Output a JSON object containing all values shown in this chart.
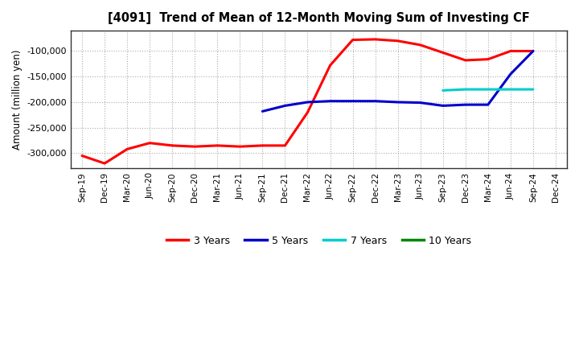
{
  "title": "[4091]  Trend of Mean of 12-Month Moving Sum of Investing CF",
  "ylabel": "Amount (million yen)",
  "plot_bg_color": "#ffffff",
  "fig_bg_color": "#ffffff",
  "grid_color": "#999999",
  "x_labels": [
    "Sep-19",
    "Dec-19",
    "Mar-20",
    "Jun-20",
    "Sep-20",
    "Dec-20",
    "Mar-21",
    "Jun-21",
    "Sep-21",
    "Dec-21",
    "Mar-22",
    "Jun-22",
    "Sep-22",
    "Dec-22",
    "Mar-23",
    "Jun-23",
    "Sep-23",
    "Dec-23",
    "Mar-24",
    "Jun-24",
    "Sep-24",
    "Dec-24"
  ],
  "ylim": [
    -330000,
    -60000
  ],
  "yticks": [
    -300000,
    -250000,
    -200000,
    -150000,
    -100000
  ],
  "series": {
    "3 Years": {
      "color": "#ff0000",
      "x_indices": [
        0,
        1,
        2,
        3,
        4,
        5,
        6,
        7,
        8,
        9,
        10,
        11,
        12,
        13,
        14,
        15,
        16,
        17,
        18,
        19,
        20
      ],
      "y": [
        -305000,
        -320000,
        -292000,
        -280000,
        -285000,
        -287000,
        -285000,
        -287000,
        -285000,
        -285000,
        -220000,
        -128000,
        -78000,
        -77000,
        -80000,
        -88000,
        -103000,
        -118000,
        -116000,
        -100000,
        -100000
      ]
    },
    "5 Years": {
      "color": "#0000cc",
      "x_indices": [
        8,
        9,
        10,
        11,
        12,
        13,
        14,
        15,
        16,
        17,
        18,
        19,
        20
      ],
      "y": [
        -218000,
        -207000,
        -200000,
        -198000,
        -198000,
        -198000,
        -200000,
        -201000,
        -207000,
        -205000,
        -205000,
        -145000,
        -100000
      ]
    },
    "7 Years": {
      "color": "#00cccc",
      "x_indices": [
        16,
        17,
        18,
        19,
        20
      ],
      "y": [
        -177000,
        -175000,
        -175000,
        -175000,
        -175000
      ]
    },
    "10 Years": {
      "color": "#008800",
      "x_indices": [],
      "y": []
    }
  },
  "legend": {
    "3 Years": {
      "color": "#ff0000"
    },
    "5 Years": {
      "color": "#0000cc"
    },
    "7 Years": {
      "color": "#00cccc"
    },
    "10 Years": {
      "color": "#008800"
    }
  }
}
